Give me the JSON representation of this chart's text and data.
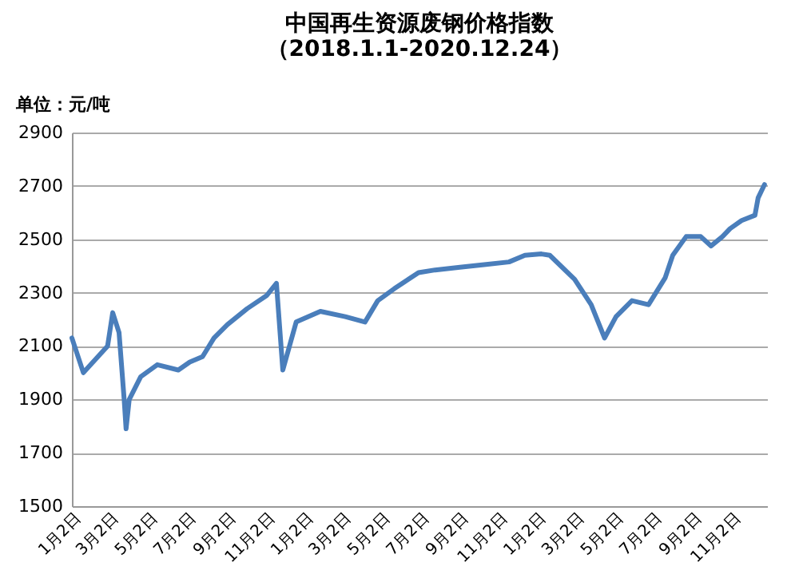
{
  "chart_data": {
    "type": "line",
    "title": [
      "中国再生资源废钢价格指数",
      "（2018.1.1-2020.12.24）"
    ],
    "annotations": [
      "单位：元/吨"
    ],
    "x": [
      "2018-01-02",
      "2018-01-20",
      "2018-02-27",
      "2018-03-07",
      "2018-03-17",
      "2018-03-25",
      "2018-03-28",
      "2018-04-02",
      "2018-04-20",
      "2018-05-16",
      "2018-06-18",
      "2018-07-06",
      "2018-07-26",
      "2018-08-13",
      "2018-09-03",
      "2018-10-04",
      "2018-11-04",
      "2018-11-19",
      "2018-11-29",
      "2018-12-20",
      "2019-01-27",
      "2019-03-07",
      "2019-04-07",
      "2019-04-27",
      "2019-05-23",
      "2019-06-30",
      "2019-07-26",
      "2019-09-03",
      "2019-10-11",
      "2019-11-19",
      "2019-12-14",
      "2020-01-09",
      "2020-01-22",
      "2020-03-01",
      "2020-03-27",
      "2020-04-17",
      "2020-05-05",
      "2020-05-30",
      "2020-06-25",
      "2020-07-21",
      "2020-08-02",
      "2020-08-23",
      "2020-09-15",
      "2020-10-01",
      "2020-10-19",
      "2020-10-31",
      "2020-11-18",
      "2020-12-09",
      "2020-12-14",
      "2020-12-24"
    ],
    "series": [
      {
        "color": "#4a7ebb",
        "values": [
          2130,
          2000,
          2100,
          2225,
          2150,
          1900,
          1790,
          1900,
          1985,
          2030,
          2010,
          2040,
          2060,
          2130,
          2180,
          2240,
          2290,
          2335,
          2010,
          2190,
          2230,
          2210,
          2190,
          2270,
          2315,
          2375,
          2385,
          2395,
          2405,
          2415,
          2440,
          2445,
          2440,
          2350,
          2255,
          2130,
          2210,
          2270,
          2255,
          2355,
          2440,
          2510,
          2510,
          2475,
          2510,
          2540,
          2570,
          2590,
          2655,
          2705
        ]
      }
    ],
    "xlim": [
      "2018-01-02",
      "2020-12-28"
    ],
    "xticks": [
      {
        "value": "2018-01-02",
        "label": "1月2日"
      },
      {
        "value": "2018-03-02",
        "label": "3月2日"
      },
      {
        "value": "2018-05-02",
        "label": "5月2日"
      },
      {
        "value": "2018-07-02",
        "label": "7月2日"
      },
      {
        "value": "2018-09-02",
        "label": "9月2日"
      },
      {
        "value": "2018-11-02",
        "label": "11月2日"
      },
      {
        "value": "2019-01-02",
        "label": "1月2日"
      },
      {
        "value": "2019-03-02",
        "label": "3月2日"
      },
      {
        "value": "2019-05-02",
        "label": "5月2日"
      },
      {
        "value": "2019-07-02",
        "label": "7月2日"
      },
      {
        "value": "2019-09-02",
        "label": "9月2日"
      },
      {
        "value": "2019-11-02",
        "label": "11月2日"
      },
      {
        "value": "2020-01-02",
        "label": "1月2日"
      },
      {
        "value": "2020-03-02",
        "label": "3月2日"
      },
      {
        "value": "2020-05-02",
        "label": "5月2日"
      },
      {
        "value": "2020-07-02",
        "label": "7月2日"
      },
      {
        "value": "2020-09-02",
        "label": "9月2日"
      },
      {
        "value": "2020-11-02",
        "label": "11月2日"
      }
    ],
    "ylim": [
      1500,
      2900
    ],
    "yticks": [
      1500,
      1700,
      1900,
      2100,
      2300,
      2500,
      2700,
      2900
    ],
    "grid": "y",
    "marker": "none",
    "line_style": "solid"
  }
}
